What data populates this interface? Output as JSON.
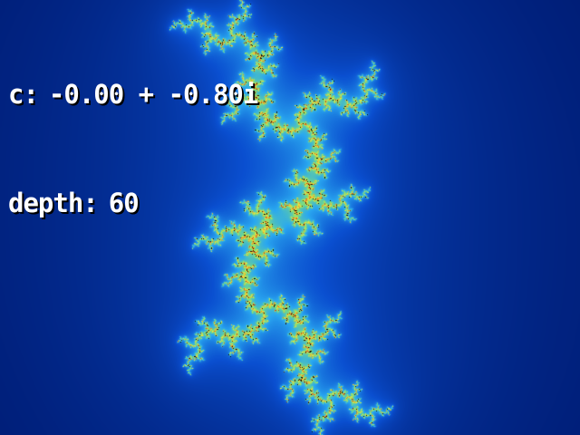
{
  "hud": {
    "c_label": "c:",
    "c_value": "-0.00 + -0.80i",
    "depth_label": "depth:",
    "depth_value": "60"
  },
  "fractal": {
    "type": "julia",
    "c_real": -0.0,
    "c_imag": -0.8,
    "max_iterations": 60,
    "palette": [
      "#02082a",
      "#001f7a",
      "#0a4fd0",
      "#2aa8f0",
      "#7fe07a",
      "#f2e23a",
      "#e04a1a",
      "#000000"
    ]
  }
}
